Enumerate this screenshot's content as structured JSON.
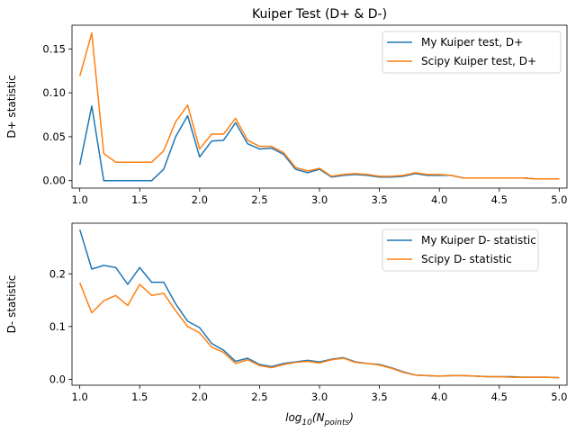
{
  "chart_data": [
    {
      "type": "line",
      "title": "Kuiper Test (D+ & D-)",
      "xlabel": "",
      "ylabel": "D+ statistic",
      "xlim": [
        0.935,
        5.065
      ],
      "ylim": [
        -0.0085,
        0.177
      ],
      "xticks": [
        1.0,
        1.5,
        2.0,
        2.5,
        3.0,
        3.5,
        4.0,
        4.5,
        5.0
      ],
      "xtick_labels": [
        "1.0",
        "1.5",
        "2.0",
        "2.5",
        "3.0",
        "3.5",
        "4.0",
        "4.5",
        "5.0"
      ],
      "yticks": [
        0.0,
        0.05,
        0.1,
        0.15
      ],
      "ytick_labels": [
        "0.00",
        "0.05",
        "0.10",
        "0.15"
      ],
      "legend_position": "top-right",
      "grid": false,
      "x": [
        1.0,
        1.1,
        1.2,
        1.3,
        1.4,
        1.5,
        1.6,
        1.7,
        1.8,
        1.9,
        2.0,
        2.1,
        2.2,
        2.3,
        2.4,
        2.5,
        2.6,
        2.7,
        2.8,
        2.9,
        3.0,
        3.1,
        3.2,
        3.3,
        3.4,
        3.5,
        3.6,
        3.7,
        3.8,
        3.9,
        4.0,
        4.1,
        4.2,
        4.3,
        4.4,
        4.5,
        4.6,
        4.7,
        4.8,
        4.9,
        5.0
      ],
      "series": [
        {
          "name": "My Kuiper test, D+",
          "color": "#1f77b4",
          "values": [
            0.018,
            0.085,
            0.0,
            0.0,
            0.0,
            0.0,
            0.0,
            0.013,
            0.05,
            0.074,
            0.027,
            0.045,
            0.046,
            0.066,
            0.042,
            0.036,
            0.037,
            0.03,
            0.013,
            0.009,
            0.013,
            0.004,
            0.006,
            0.007,
            0.006,
            0.004,
            0.004,
            0.005,
            0.008,
            0.006,
            0.006,
            0.006,
            0.003,
            0.003,
            0.003,
            0.003,
            0.003,
            0.003,
            0.002,
            0.002,
            0.002
          ]
        },
        {
          "name": "Scipy Kuiper test, D+",
          "color": "#ff7f0e",
          "values": [
            0.119,
            0.168,
            0.031,
            0.021,
            0.021,
            0.021,
            0.021,
            0.034,
            0.067,
            0.086,
            0.036,
            0.053,
            0.053,
            0.071,
            0.046,
            0.039,
            0.039,
            0.032,
            0.015,
            0.011,
            0.014,
            0.005,
            0.007,
            0.008,
            0.007,
            0.005,
            0.005,
            0.006,
            0.009,
            0.007,
            0.007,
            0.006,
            0.003,
            0.003,
            0.003,
            0.003,
            0.003,
            0.003,
            0.002,
            0.002,
            0.002
          ]
        }
      ]
    },
    {
      "type": "line",
      "title": "",
      "xlabel": "log10(Npoints)",
      "ylabel": "D- statistic",
      "xlim": [
        0.935,
        5.065
      ],
      "ylim": [
        -0.0112,
        0.296
      ],
      "xticks": [
        1.0,
        1.5,
        2.0,
        2.5,
        3.0,
        3.5,
        4.0,
        4.5,
        5.0
      ],
      "xtick_labels": [
        "1.0",
        "1.5",
        "2.0",
        "2.5",
        "3.0",
        "3.5",
        "4.0",
        "4.5",
        "5.0"
      ],
      "yticks": [
        0.0,
        0.1,
        0.2
      ],
      "ytick_labels": [
        "0.0",
        "0.1",
        "0.2"
      ],
      "legend_position": "top-right",
      "grid": false,
      "x": [
        1.0,
        1.1,
        1.2,
        1.3,
        1.4,
        1.5,
        1.6,
        1.7,
        1.8,
        1.9,
        2.0,
        2.1,
        2.2,
        2.3,
        2.4,
        2.5,
        2.6,
        2.7,
        2.8,
        2.9,
        3.0,
        3.1,
        3.2,
        3.3,
        3.4,
        3.5,
        3.6,
        3.7,
        3.8,
        3.9,
        4.0,
        4.1,
        4.2,
        4.3,
        4.4,
        4.5,
        4.6,
        4.7,
        4.8,
        4.9,
        5.0
      ],
      "series": [
        {
          "name": "My Kuiper D- statistic",
          "color": "#1f77b4",
          "values": [
            0.284,
            0.209,
            0.216,
            0.212,
            0.18,
            0.212,
            0.184,
            0.184,
            0.143,
            0.11,
            0.098,
            0.068,
            0.055,
            0.034,
            0.04,
            0.028,
            0.024,
            0.03,
            0.033,
            0.036,
            0.033,
            0.038,
            0.041,
            0.033,
            0.03,
            0.028,
            0.022,
            0.014,
            0.008,
            0.007,
            0.006,
            0.007,
            0.007,
            0.006,
            0.005,
            0.005,
            0.005,
            0.004,
            0.004,
            0.004,
            0.003
          ]
        },
        {
          "name": "Scipy D- statistic",
          "color": "#ff7f0e",
          "values": [
            0.183,
            0.126,
            0.149,
            0.159,
            0.14,
            0.18,
            0.159,
            0.163,
            0.13,
            0.1,
            0.088,
            0.061,
            0.051,
            0.03,
            0.037,
            0.026,
            0.022,
            0.028,
            0.032,
            0.034,
            0.031,
            0.037,
            0.04,
            0.032,
            0.03,
            0.027,
            0.021,
            0.013,
            0.008,
            0.007,
            0.006,
            0.007,
            0.007,
            0.006,
            0.005,
            0.005,
            0.004,
            0.004,
            0.004,
            0.004,
            0.003
          ]
        }
      ]
    }
  ]
}
